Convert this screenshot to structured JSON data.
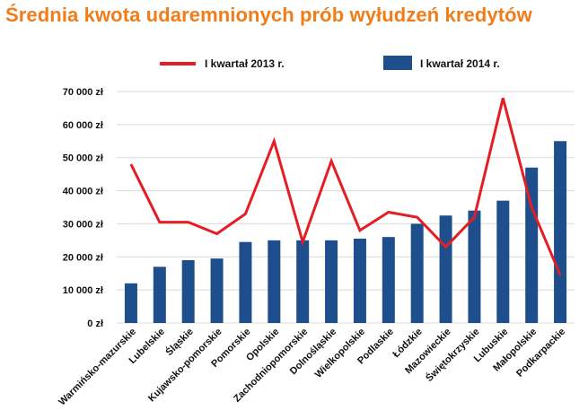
{
  "chart_data": {
    "type": "bar",
    "title": "Średnia kwota udaremnionych prób wyłudzeń kredytów",
    "xlabel": "",
    "ylabel": "",
    "ylim": [
      0,
      70000
    ],
    "yticks": [
      0,
      10000,
      20000,
      30000,
      40000,
      50000,
      60000,
      70000
    ],
    "ytick_labels": [
      "0 zł",
      "10 000 zł",
      "20 000 zł",
      "30 000 zł",
      "40 000 zł",
      "50 000 zł",
      "60 000 zł",
      "70 000 zł"
    ],
    "grid": true,
    "legend_position": "top",
    "categories": [
      "Warmińsko-mazurskie",
      "Lubelskie",
      "Śląskie",
      "Kujawsko-pomorskie",
      "Pomorskie",
      "Opolskie",
      "Zachodniopomorskie",
      "Dolnośląskie",
      "Wielkopolskie",
      "Podlaskie",
      "Łódzkie",
      "Mazowieckie",
      "Świętokrzyskie",
      "Lubuskie",
      "Małopolskie",
      "Podkarpackie"
    ],
    "series": [
      {
        "name": "I kwartał 2014 r.",
        "kind": "bar",
        "color": "#1f4e8c",
        "values": [
          12000,
          17000,
          19000,
          19500,
          24500,
          25000,
          25000,
          25000,
          25500,
          26000,
          30000,
          32500,
          34000,
          37000,
          47000,
          55000
        ]
      },
      {
        "name": "I kwartał 2013 r.",
        "kind": "line",
        "color": "#e31e24",
        "values": [
          48000,
          30500,
          30500,
          27000,
          33000,
          55000,
          24500,
          49000,
          28000,
          33500,
          32000,
          23000,
          32000,
          68000,
          35000,
          14500
        ]
      }
    ]
  }
}
